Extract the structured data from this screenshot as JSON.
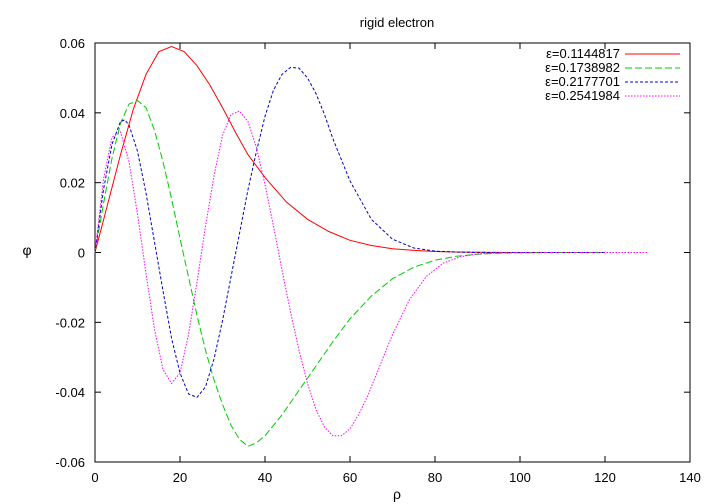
{
  "chart_data": {
    "type": "line",
    "title": "rigid electron",
    "xlabel": "ρ",
    "ylabel": "φ",
    "xlim": [
      0,
      140
    ],
    "ylim": [
      -0.06,
      0.06
    ],
    "xticks": [
      0,
      20,
      40,
      60,
      80,
      100,
      120,
      140
    ],
    "yticks": [
      -0.06,
      -0.04,
      -0.02,
      0,
      0.02,
      0.04,
      0.06
    ],
    "xtick_labels": [
      "0",
      "20",
      "40",
      "60",
      "80",
      "100",
      "120",
      "140"
    ],
    "ytick_labels": [
      "-0.06",
      "-0.04",
      "-0.02",
      "0",
      "0.02",
      "0.04",
      "0.06"
    ],
    "grid": false,
    "legend_position": "top-right",
    "series": [
      {
        "name": "ε=0.1144817",
        "color": "#ff0000",
        "dash": "solid",
        "x": [
          0,
          3,
          6,
          9,
          12,
          15,
          18,
          21,
          24,
          27,
          30,
          33,
          36,
          40,
          45,
          50,
          55,
          60,
          65,
          70,
          75,
          80,
          85,
          90,
          95,
          100,
          110,
          120
        ],
        "y": [
          0,
          0.014,
          0.028,
          0.041,
          0.051,
          0.0575,
          0.059,
          0.0575,
          0.0535,
          0.048,
          0.0415,
          0.0345,
          0.028,
          0.0215,
          0.0145,
          0.0095,
          0.006,
          0.0035,
          0.002,
          0.0011,
          0.0006,
          0.0003,
          0.00015,
          7e-05,
          3e-05,
          1e-05,
          0,
          0
        ]
      },
      {
        "name": "ε=0.1738982",
        "color": "#00cc00",
        "dash": "dashed",
        "x": [
          0,
          2,
          4,
          6,
          8,
          10,
          12,
          14,
          16,
          18,
          20,
          22,
          24,
          26,
          28,
          30,
          32,
          34,
          36,
          38,
          40,
          44,
          48,
          52,
          56,
          60,
          65,
          70,
          75,
          80,
          85,
          90,
          95,
          100,
          105,
          110,
          115,
          120
        ],
        "y": [
          0,
          0.014,
          0.027,
          0.037,
          0.0425,
          0.0435,
          0.0415,
          0.035,
          0.026,
          0.0155,
          0.004,
          -0.007,
          -0.018,
          -0.028,
          -0.0365,
          -0.0435,
          -0.0495,
          -0.0535,
          -0.0555,
          -0.0545,
          -0.0525,
          -0.0465,
          -0.0395,
          -0.0325,
          -0.0255,
          -0.019,
          -0.0125,
          -0.0075,
          -0.0042,
          -0.0022,
          -0.0011,
          -0.0005,
          -0.0002,
          -0.0001,
          -3e-05,
          0,
          0,
          0
        ]
      },
      {
        "name": "ε=0.2177701",
        "color": "#0000cc",
        "dash": "dotted",
        "x": [
          0,
          2,
          4,
          6,
          7,
          8,
          10,
          12,
          14,
          16,
          18,
          20,
          22,
          24,
          26,
          28,
          30,
          32,
          34,
          36,
          38,
          40,
          42,
          44,
          46,
          48,
          50,
          52,
          54,
          56,
          60,
          65,
          70,
          75,
          80,
          85,
          90,
          95,
          100,
          105,
          110,
          115,
          120
        ],
        "y": [
          0,
          0.018,
          0.031,
          0.0375,
          0.038,
          0.0365,
          0.029,
          0.017,
          0.003,
          -0.011,
          -0.0245,
          -0.0345,
          -0.0405,
          -0.0415,
          -0.0385,
          -0.0305,
          -0.0195,
          -0.007,
          0.0055,
          0.018,
          0.029,
          0.039,
          0.0465,
          0.051,
          0.053,
          0.0528,
          0.05,
          0.0455,
          0.0395,
          0.0325,
          0.0205,
          0.0095,
          0.0038,
          0.0013,
          0.0004,
          0.00011,
          3e-05,
          0,
          0,
          0,
          0,
          0,
          0
        ]
      },
      {
        "name": "ε=0.2541984",
        "color": "#ff00ff",
        "dash": "finedotted",
        "x": [
          0,
          2,
          4,
          6,
          8,
          10,
          12,
          14,
          16,
          18,
          20,
          22,
          24,
          26,
          28,
          30,
          32,
          34,
          36,
          38,
          40,
          42,
          44,
          46,
          48,
          50,
          52,
          54,
          56,
          58,
          60,
          62,
          64,
          66,
          68,
          70,
          74,
          78,
          82,
          86,
          90,
          95,
          100,
          110,
          120,
          130
        ],
        "y": [
          0,
          0.021,
          0.033,
          0.0345,
          0.026,
          0.011,
          -0.006,
          -0.022,
          -0.0335,
          -0.0375,
          -0.0345,
          -0.0235,
          -0.0085,
          0.0075,
          0.022,
          0.0335,
          0.0395,
          0.0405,
          0.0375,
          0.03,
          0.0195,
          0.0075,
          -0.005,
          -0.017,
          -0.028,
          -0.0375,
          -0.045,
          -0.05,
          -0.0525,
          -0.0525,
          -0.0505,
          -0.0465,
          -0.0415,
          -0.0355,
          -0.0295,
          -0.0235,
          -0.0135,
          -0.0068,
          -0.003,
          -0.0012,
          -0.0004,
          -0.0001,
          -2e-05,
          0,
          0,
          0
        ]
      }
    ]
  }
}
